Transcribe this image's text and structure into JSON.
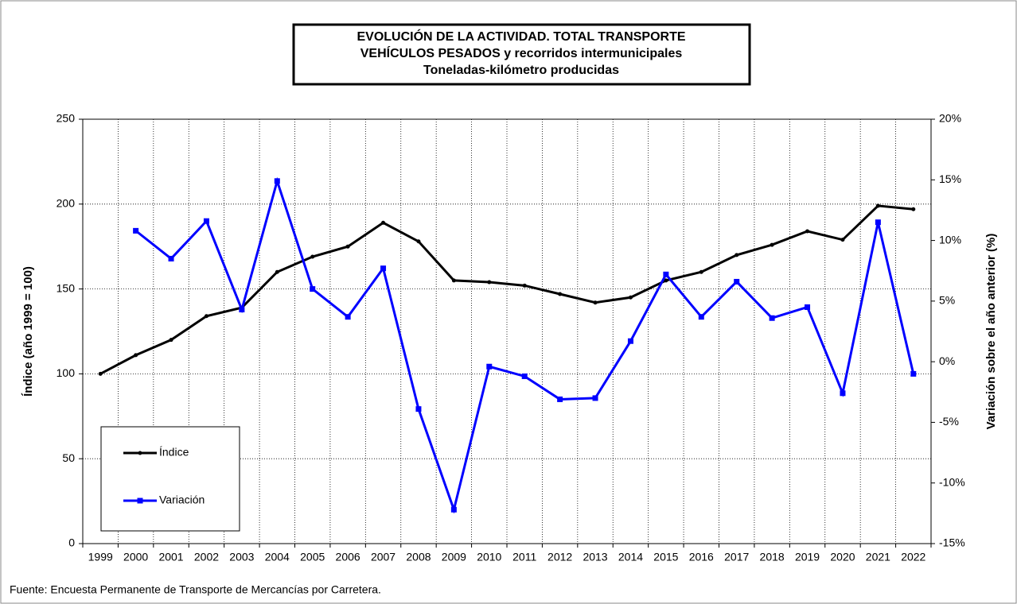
{
  "chart_data": {
    "type": "line",
    "title": [
      "EVOLUCIÓN  DE  LA  ACTIVIDAD.  TOTAL TRANSPORTE",
      "VEHÍCULOS   PESADOS  y  recorridos  intermunicipales",
      "Toneladas-kilómetro producidas"
    ],
    "ylabel": "Índice (año 1999 = 100)",
    "y2label": "Variación sobre el año anterior (%)",
    "source": "Fuente: Encuesta Permanente de Transporte de Mercancías por Carretera.",
    "categories": [
      "1999",
      "2000",
      "2001",
      "2002",
      "2003",
      "2004",
      "2005",
      "2006",
      "2007",
      "2008",
      "2009",
      "2010",
      "2011",
      "2012",
      "2013",
      "2014",
      "2015",
      "2016",
      "2017",
      "2018",
      "2019",
      "2020",
      "2021",
      "2022"
    ],
    "series": [
      {
        "name": "Índice",
        "color": "#000000",
        "values": [
          100,
          111,
          120,
          134,
          139,
          160,
          169,
          175,
          189,
          178,
          155,
          154,
          152,
          147,
          142,
          145,
          155,
          160,
          170,
          176,
          184,
          179,
          199,
          197
        ]
      },
      {
        "name": "Variación",
        "color": "#0000ff",
        "axis": "y2",
        "values": [
          null,
          10.8,
          8.5,
          11.6,
          4.3,
          14.9,
          6.0,
          3.7,
          7.7,
          -3.9,
          -12.2,
          -0.4,
          -1.2,
          -3.1,
          -3.0,
          1.7,
          7.2,
          3.7,
          6.6,
          3.6,
          4.5,
          -2.6,
          11.5,
          -1.0
        ]
      }
    ],
    "ylim": [
      0,
      250
    ],
    "yticks": [
      0,
      50,
      100,
      150,
      200,
      250
    ],
    "y2lim": [
      -15,
      20
    ],
    "y2ticks": [
      {
        "value": -15,
        "label": "-15%"
      },
      {
        "value": -10,
        "label": "-10%"
      },
      {
        "value": -5,
        "label": "-5%"
      },
      {
        "value": 0,
        "label": "0%"
      },
      {
        "value": 5,
        "label": "5%"
      },
      {
        "value": 10,
        "label": "10%"
      },
      {
        "value": 15,
        "label": "15%"
      },
      {
        "value": 20,
        "label": "20%"
      }
    ],
    "grid": true,
    "legend": "lower left"
  }
}
